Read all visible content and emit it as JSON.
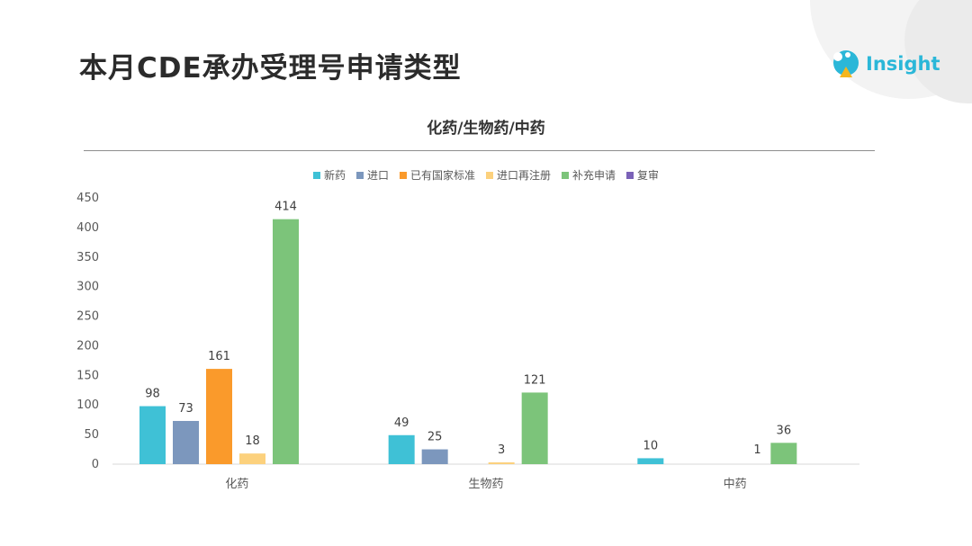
{
  "page": {
    "title": "本月CDE承办受理号申请类型"
  },
  "logo": {
    "text": "Insight"
  },
  "colors": {
    "accent": "#2bb7d8"
  },
  "chart_data": {
    "type": "bar",
    "title": "化药/生物药/中药",
    "categories": [
      "化药",
      "生物药",
      "中药"
    ],
    "ylim": [
      0,
      450
    ],
    "yticks": [
      0,
      50,
      100,
      150,
      200,
      250,
      300,
      350,
      400,
      450
    ],
    "grid": false,
    "legend_position": "top-center",
    "series": [
      {
        "name": "新药",
        "color": "#3fc1d6",
        "values": [
          98,
          49,
          10
        ]
      },
      {
        "name": "进口",
        "color": "#7c97bd",
        "values": [
          73,
          25,
          null
        ]
      },
      {
        "name": "已有国家标准",
        "color": "#fa9a2b",
        "values": [
          161,
          null,
          null
        ]
      },
      {
        "name": "进口再注册",
        "color": "#fcd17d",
        "values": [
          18,
          3,
          null
        ]
      },
      {
        "name": "补充申请",
        "color": "#7cc47a",
        "values": [
          414,
          121,
          36
        ]
      },
      {
        "name": "复审",
        "color": "#7b62b8",
        "values": [
          null,
          null,
          null
        ]
      }
    ],
    "extra_labels": [
      {
        "category_index": 2,
        "text": "1"
      }
    ]
  }
}
